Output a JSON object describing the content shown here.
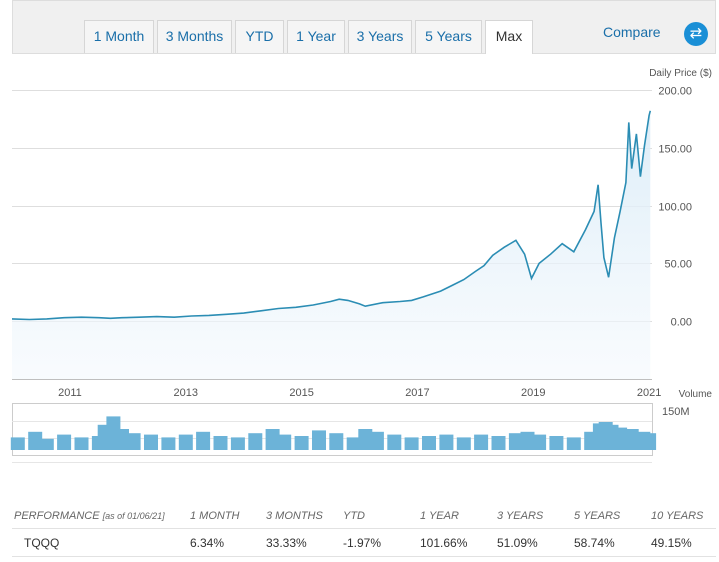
{
  "tabs": [
    {
      "label": "1 Month",
      "active": false
    },
    {
      "label": "3 Months",
      "active": false
    },
    {
      "label": "YTD",
      "active": false
    },
    {
      "label": "1 Year",
      "active": false
    },
    {
      "label": "3 Years",
      "active": false
    },
    {
      "label": "5 Years",
      "active": false
    },
    {
      "label": "Max",
      "active": true
    }
  ],
  "compare": {
    "label": "Compare",
    "icon": "swap-arrows-icon",
    "icon_color": "#1a8fd6"
  },
  "chart_data": [
    {
      "type": "line",
      "name": "price",
      "ylabel": "Daily Price ($)",
      "ylim": [
        -50,
        200
      ],
      "yticks": [
        "200.00",
        "150.00",
        "100.00",
        "50.00",
        "0.00"
      ],
      "ytick_values": [
        200,
        150,
        100,
        50,
        0
      ],
      "xlim": [
        2010.0,
        2021.05
      ],
      "xticks": [
        "2011",
        "2013",
        "2015",
        "2017",
        "2019",
        "2021"
      ],
      "xtick_values": [
        2011,
        2013,
        2015,
        2017,
        2019,
        2021
      ],
      "line_color": "#2b8db4",
      "fill_color": "#eaf4fb",
      "x": [
        2010.0,
        2010.3,
        2010.6,
        2010.9,
        2011.2,
        2011.5,
        2011.7,
        2011.9,
        2012.2,
        2012.5,
        2012.8,
        2013.1,
        2013.4,
        2013.7,
        2014.0,
        2014.3,
        2014.6,
        2014.9,
        2015.2,
        2015.5,
        2015.65,
        2015.8,
        2016.0,
        2016.1,
        2016.4,
        2016.7,
        2016.9,
        2017.1,
        2017.4,
        2017.6,
        2017.8,
        2018.0,
        2018.15,
        2018.3,
        2018.5,
        2018.7,
        2018.85,
        2018.97,
        2019.1,
        2019.3,
        2019.5,
        2019.7,
        2019.9,
        2020.05,
        2020.12,
        2020.17,
        2020.22,
        2020.3,
        2020.4,
        2020.5,
        2020.6,
        2020.65,
        2020.7,
        2020.78,
        2020.85,
        2020.92,
        2021.0,
        2021.02
      ],
      "y": [
        2,
        1.5,
        2,
        3,
        3.5,
        3,
        2.5,
        3,
        3.5,
        4,
        3.5,
        4.5,
        5,
        6,
        7,
        9,
        11,
        12,
        14,
        17,
        19,
        18,
        15,
        13,
        16,
        17,
        18,
        21,
        26,
        31,
        36,
        43,
        48,
        57,
        64,
        70,
        58,
        37,
        50,
        58,
        67,
        60,
        79,
        95,
        118,
        85,
        55,
        38,
        72,
        95,
        120,
        172,
        132,
        162,
        125,
        152,
        178,
        182
      ]
    },
    {
      "type": "bar",
      "name": "volume",
      "ylabel": "Volume",
      "ytick_labels": [
        "150M"
      ],
      "ytick_values": [
        150
      ],
      "bar_color": "#6cb3d8",
      "x": [
        2010.1,
        2010.4,
        2010.6,
        2010.9,
        2011.2,
        2011.5,
        2011.6,
        2011.75,
        2011.9,
        2012.1,
        2012.4,
        2012.7,
        2013.0,
        2013.3,
        2013.6,
        2013.9,
        2014.2,
        2014.5,
        2014.7,
        2015.0,
        2015.3,
        2015.6,
        2015.9,
        2016.1,
        2016.3,
        2016.6,
        2016.9,
        2017.2,
        2017.5,
        2017.8,
        2018.1,
        2018.4,
        2018.7,
        2018.9,
        2019.1,
        2019.4,
        2019.7,
        2020.0,
        2020.15,
        2020.25,
        2020.35,
        2020.5,
        2020.7,
        2020.9,
        2021.0
      ],
      "values": [
        45,
        65,
        40,
        55,
        45,
        50,
        90,
        120,
        75,
        60,
        55,
        45,
        55,
        65,
        50,
        45,
        60,
        75,
        55,
        50,
        70,
        60,
        45,
        75,
        65,
        55,
        45,
        50,
        55,
        45,
        55,
        50,
        60,
        65,
        55,
        50,
        45,
        65,
        95,
        100,
        90,
        80,
        75,
        65,
        60
      ]
    }
  ],
  "performance": {
    "header": "PERFORMANCE",
    "as_of": "[as of 01/06/21]",
    "periods": [
      "1 MONTH",
      "3 MONTHS",
      "YTD",
      "1 YEAR",
      "3 YEARS",
      "5 YEARS",
      "10 YEARS"
    ],
    "ticker": "TQQQ",
    "values": [
      "6.34%",
      "33.33%",
      "-1.97%",
      "101.66%",
      "51.09%",
      "58.74%",
      "49.15%"
    ]
  }
}
